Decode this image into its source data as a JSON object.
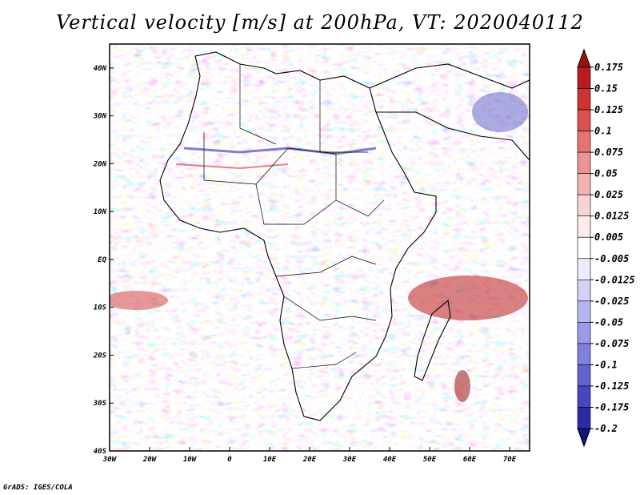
{
  "title": "Vertical velocity [m/s] at 200hPa, VT: 2020040112",
  "credit": "GrADS: IGES/COLA",
  "map": {
    "lon_range": [
      -30,
      75
    ],
    "lat_range": [
      -40,
      45
    ],
    "lat_ticks": [
      {
        "value": 40,
        "label": "40N"
      },
      {
        "value": 30,
        "label": "30N"
      },
      {
        "value": 20,
        "label": "20N"
      },
      {
        "value": 10,
        "label": "10N"
      },
      {
        "value": 0,
        "label": "EQ"
      },
      {
        "value": -10,
        "label": "10S"
      },
      {
        "value": -20,
        "label": "20S"
      },
      {
        "value": -30,
        "label": "30S"
      },
      {
        "value": -40,
        "label": "40S"
      }
    ],
    "lon_ticks": [
      {
        "value": -30,
        "label": "30W"
      },
      {
        "value": -20,
        "label": "20W"
      },
      {
        "value": -10,
        "label": "10W"
      },
      {
        "value": 0,
        "label": "0"
      },
      {
        "value": 10,
        "label": "10E"
      },
      {
        "value": 20,
        "label": "20E"
      },
      {
        "value": 30,
        "label": "30E"
      },
      {
        "value": 40,
        "label": "40E"
      },
      {
        "value": 50,
        "label": "50E"
      },
      {
        "value": 60,
        "label": "60E"
      },
      {
        "value": 70,
        "label": "70E"
      }
    ]
  },
  "colorbar": {
    "levels": [
      "0.175",
      "0.15",
      "0.125",
      "0.1",
      "0.075",
      "0.05",
      "0.025",
      "0.0125",
      "0.005",
      "-0.005",
      "-0.0125",
      "-0.025",
      "-0.05",
      "-0.075",
      "-0.1",
      "-0.125",
      "-0.175",
      "-0.2"
    ],
    "colors": [
      "#9b1010",
      "#b81b1b",
      "#cc3333",
      "#dd5050",
      "#e57373",
      "#ec9393",
      "#f2b3b3",
      "#f8d4d4",
      "#fcecec",
      "#ffffff",
      "#ececfc",
      "#d2d2f6",
      "#b6b6ef",
      "#9a9ae6",
      "#7f7fdc",
      "#6363d0",
      "#4646bf",
      "#2b2ba8",
      "#14147f"
    ]
  }
}
